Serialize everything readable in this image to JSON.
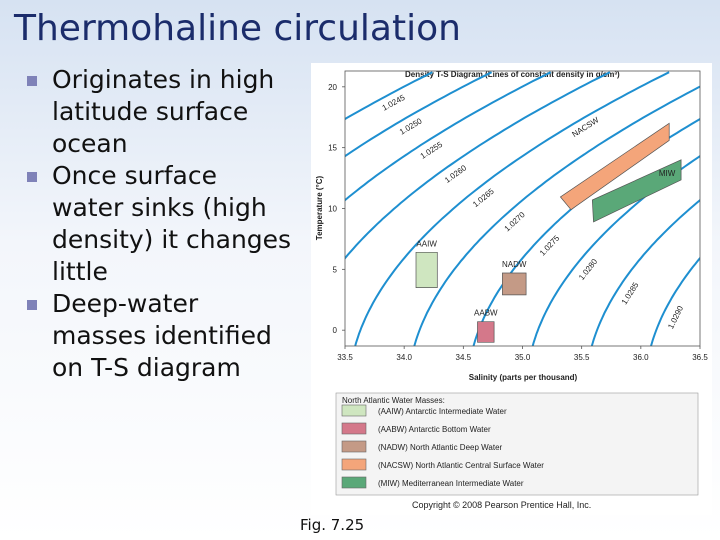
{
  "title": "Thermohaline circulation",
  "bullets": [
    "Originates in high latitude surface ocean",
    "Once surface water sinks (high density) it changes little",
    "Deep-water masses identified on T-S diagram"
  ],
  "figure": {
    "title": "Density T-S Diagram (Lines of constant density in g/cm³)",
    "x_label": "Salinity (parts per thousand)",
    "y_label": "Temperature (°C)",
    "xlim": [
      33.5,
      36.5
    ],
    "xticks": [
      33.5,
      {
        "value": 34,
        "label": "34.0"
      },
      34.5,
      {
        "value": 35,
        "label": "35.0"
      },
      35.5,
      {
        "value": 36,
        "label": "36.0"
      },
      36.5
    ],
    "ylim": [
      -1.3,
      21.3
    ],
    "yticks": [
      0,
      5,
      10,
      15,
      20
    ],
    "line_color": "#1e8fd0",
    "isopycnals": [
      1.0245,
      {
        "value": 1.025,
        "label": "1.0250"
      },
      1.0255,
      {
        "value": 1.026,
        "label": "1.0260"
      },
      1.0265,
      {
        "value": 1.027,
        "label": "1.0270"
      },
      1.0275,
      {
        "value": 1.028,
        "label": "1.0280"
      },
      1.0285,
      {
        "value": 1.029,
        "label": "1.0290"
      }
    ],
    "water_masses": [
      {
        "name": "AAIW",
        "color": "#cfe6c0",
        "points": [
          [
            34.1,
            3.5
          ],
          [
            34.28,
            3.5
          ],
          [
            34.28,
            6.4
          ],
          [
            34.1,
            6.4
          ]
        ]
      },
      {
        "name": "AABW",
        "color": "#d4788a",
        "points": [
          [
            34.62,
            -1
          ],
          [
            34.76,
            -1
          ],
          [
            34.76,
            0.7
          ],
          [
            34.62,
            0.7
          ]
        ]
      },
      {
        "name": "NADW",
        "color": "#c49a86",
        "points": [
          [
            34.83,
            2.9
          ],
          [
            35.03,
            2.9
          ],
          [
            35.03,
            4.7
          ],
          [
            34.83,
            4.7
          ]
        ]
      },
      {
        "name": "NACSW",
        "color": "#f4a57a",
        "points": [
          [
            35.41,
            9.9
          ],
          [
            36.24,
            15.6
          ],
          [
            36.24,
            17
          ],
          [
            35.32,
            10.95
          ]
        ]
      },
      {
        "name": "MIW",
        "color": "#5aa878",
        "points": [
          [
            35.6,
            8.9
          ],
          [
            36.34,
            12.35
          ],
          [
            36.34,
            14
          ],
          [
            35.59,
            10.7
          ]
        ]
      }
    ],
    "legend_title": "North Atlantic Water Masses:",
    "legend": [
      "(AAIW) Antarctic Intermediate Water",
      "(AABW) Antarctic Bottom Water",
      "(NADW) North Atlantic Deep Water",
      "(NACSW) North Atlantic Central Surface Water",
      "(MIW) Mediterranean Intermediate Water"
    ],
    "copyright": "Copyright © 2008 Pearson Prentice Hall, Inc."
  },
  "caption": "Fig. 7.25"
}
